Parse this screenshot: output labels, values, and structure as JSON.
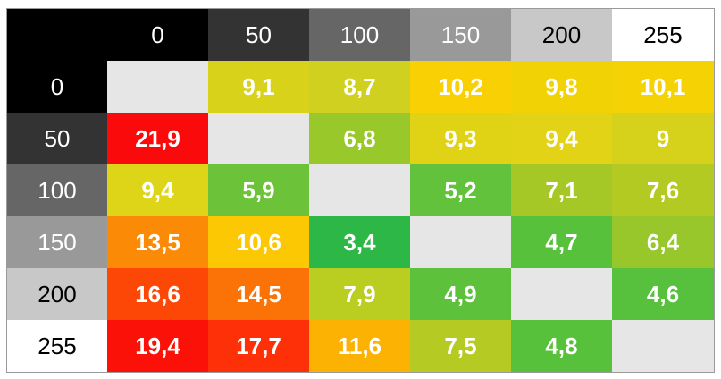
{
  "chart_data": {
    "type": "heatmap",
    "x_labels": [
      "0",
      "50",
      "100",
      "150",
      "200",
      "255"
    ],
    "y_labels": [
      "0",
      "50",
      "100",
      "150",
      "200",
      "255"
    ],
    "corner_color": "#000000",
    "header_colors": [
      "#000000",
      "#333333",
      "#666666",
      "#999999",
      "#c8c8c8",
      "#ffffff"
    ],
    "header_text_colors": [
      "#ffffff",
      "#ffffff",
      "#ffffff",
      "#ffffff",
      "#000000",
      "#000000"
    ],
    "diagonal_color": "#e6e6e6",
    "values": [
      [
        null,
        "9,1",
        "8,7",
        "10,2",
        "9,8",
        "10,1"
      ],
      [
        "21,9",
        null,
        "6,8",
        "9,3",
        "9,4",
        "9"
      ],
      [
        "9,4",
        "5,9",
        null,
        "5,2",
        "7,1",
        "7,6"
      ],
      [
        "13,5",
        "10,6",
        "3,4",
        null,
        "4,7",
        "6,4"
      ],
      [
        "16,6",
        "14,5",
        "7,9",
        "4,9",
        null,
        "4,6"
      ],
      [
        "19,4",
        "17,7",
        "11,6",
        "7,5",
        "4,8",
        null
      ]
    ],
    "cell_colors": [
      [
        "#e6e6e6",
        "#d8d21a",
        "#cfd01f",
        "#f9d003",
        "#f1d305",
        "#f5d204"
      ],
      [
        "#fa0a0b",
        "#e6e6e6",
        "#98c82a",
        "#e0d316",
        "#e2d316",
        "#d6d11b"
      ],
      [
        "#ded418",
        "#6cc238",
        "#e6e6e6",
        "#62c23b",
        "#a6c826",
        "#b3ca22"
      ],
      [
        "#fb8a06",
        "#fcc804",
        "#2cb747",
        "#e6e6e6",
        "#58c13c",
        "#97c72b"
      ],
      [
        "#fd4706",
        "#fb7206",
        "#bacd21",
        "#5dc13c",
        "#e6e6e6",
        "#57c13d"
      ],
      [
        "#fb1107",
        "#fd3008",
        "#fcb203",
        "#b5ca22",
        "#58c13c",
        "#e6e6e6"
      ]
    ]
  }
}
